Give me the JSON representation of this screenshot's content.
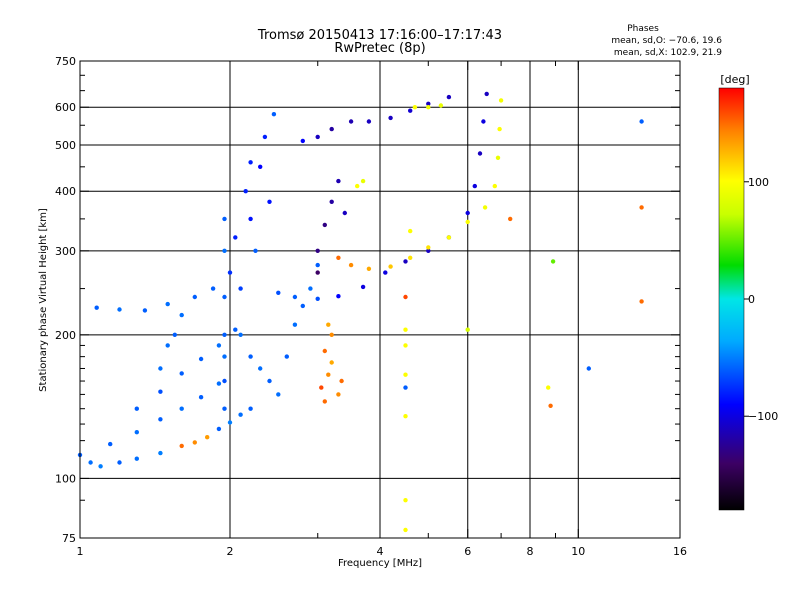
{
  "chart_data": {
    "type": "scatter",
    "title": "Tromsø 20150413 17:16:00–17:17:43",
    "subtitle": "RwPretec (8p)",
    "info": {
      "heading": "Phases",
      "line1": "mean, sd,O: −70.6, 19.6",
      "line2": "mean, sd,X: 102.9, 21.9"
    },
    "xlabel": "Frequency [MHz]",
    "ylabel": "Stationary phase Virtual Height [km]",
    "x_scale": "log",
    "y_scale": "log",
    "xlim": [
      1,
      16
    ],
    "ylim": [
      75,
      750
    ],
    "x_ticks": [
      1,
      2,
      4,
      6,
      8,
      10,
      16
    ],
    "x_tick_labels": [
      "1",
      "2",
      "4",
      "6",
      "8",
      "10",
      "16"
    ],
    "x_minor_ticks": [
      3,
      5,
      7,
      9
    ],
    "y_ticks": [
      75,
      100,
      200,
      300,
      400,
      500,
      600,
      750
    ],
    "y_tick_labels": [
      "75",
      "100",
      "200",
      "300",
      "400",
      "500",
      "600",
      "750"
    ],
    "y_minor_ticks": [
      90,
      120,
      130,
      140,
      150,
      160,
      170,
      180,
      190,
      250,
      350,
      450,
      550,
      650,
      700
    ],
    "x_grid": [
      2,
      4,
      6,
      8,
      10
    ],
    "y_grid": [
      100,
      200,
      300,
      400,
      500,
      600
    ],
    "grid": true,
    "colorbar": {
      "label": "[deg]",
      "min": -180,
      "max": 180,
      "ticks": [
        100,
        0,
        -100
      ],
      "tick_labels": [
        "100",
        "0",
        "−100"
      ]
    },
    "series": [
      {
        "points": [
          [
            1.0,
            112,
            -60
          ],
          [
            1.05,
            108,
            -55
          ],
          [
            1.1,
            106,
            -50
          ],
          [
            1.2,
            108,
            -60
          ],
          [
            1.3,
            110,
            -55
          ],
          [
            1.45,
            113,
            -50
          ],
          [
            1.6,
            117,
            150
          ],
          [
            1.7,
            119,
            140
          ],
          [
            1.8,
            122,
            135
          ],
          [
            1.9,
            127,
            -60
          ],
          [
            2.0,
            131,
            -50
          ],
          [
            2.1,
            136,
            -55
          ],
          [
            2.2,
            140,
            -60
          ],
          [
            1.15,
            118,
            -60
          ],
          [
            1.3,
            125,
            -55
          ],
          [
            1.45,
            133,
            -60
          ],
          [
            1.6,
            140,
            -55
          ],
          [
            1.75,
            148,
            -60
          ],
          [
            1.9,
            158,
            -55
          ],
          [
            1.3,
            140,
            -60
          ],
          [
            1.45,
            152,
            -65
          ],
          [
            1.6,
            166,
            -60
          ],
          [
            1.75,
            178,
            -60
          ],
          [
            1.9,
            190,
            -55
          ],
          [
            2.05,
            205,
            -60
          ],
          [
            1.08,
            228,
            -60
          ],
          [
            1.2,
            226,
            -55
          ],
          [
            1.35,
            225,
            -60
          ],
          [
            1.5,
            232,
            -55
          ],
          [
            1.7,
            240,
            -60
          ],
          [
            1.85,
            250,
            -60
          ],
          [
            1.45,
            170,
            -55
          ],
          [
            1.5,
            190,
            -55
          ],
          [
            1.55,
            200,
            -60
          ],
          [
            1.6,
            220,
            -55
          ],
          [
            1.95,
            140,
            -60
          ],
          [
            1.95,
            160,
            -65
          ],
          [
            1.95,
            180,
            -55
          ],
          [
            1.95,
            200,
            -60
          ],
          [
            1.95,
            240,
            -60
          ],
          [
            1.95,
            300,
            -55
          ],
          [
            1.95,
            350,
            -60
          ],
          [
            2.0,
            270,
            -75
          ],
          [
            2.05,
            320,
            -80
          ],
          [
            2.1,
            250,
            -70
          ],
          [
            2.15,
            400,
            -80
          ],
          [
            2.2,
            350,
            -85
          ],
          [
            2.2,
            460,
            -80
          ],
          [
            2.25,
            300,
            -60
          ],
          [
            2.3,
            450,
            -90
          ],
          [
            2.35,
            520,
            -80
          ],
          [
            2.4,
            380,
            -85
          ],
          [
            2.45,
            580,
            -60
          ],
          [
            2.1,
            200,
            -55
          ],
          [
            2.2,
            180,
            -60
          ],
          [
            2.3,
            170,
            -55
          ],
          [
            2.4,
            160,
            -60
          ],
          [
            2.5,
            150,
            -55
          ],
          [
            2.6,
            180,
            -60
          ],
          [
            2.7,
            210,
            -55
          ],
          [
            2.8,
            230,
            -60
          ],
          [
            2.9,
            250,
            -55
          ],
          [
            3.0,
            280,
            -60
          ],
          [
            2.5,
            245,
            -65
          ],
          [
            2.7,
            240,
            -60
          ],
          [
            3.0,
            238,
            -65
          ],
          [
            3.3,
            241,
            -90
          ],
          [
            3.7,
            252,
            -100
          ],
          [
            4.1,
            270,
            -100
          ],
          [
            4.5,
            285,
            -110
          ],
          [
            5.0,
            300,
            -110
          ],
          [
            5.5,
            320,
            -110
          ],
          [
            6.0,
            360,
            -100
          ],
          [
            6.2,
            410,
            -100
          ],
          [
            6.35,
            480,
            -110
          ],
          [
            6.45,
            560,
            -100
          ],
          [
            6.55,
            640,
            -110
          ],
          [
            3.3,
            290,
            150
          ],
          [
            3.5,
            280,
            140
          ],
          [
            3.8,
            275,
            130
          ],
          [
            4.2,
            278,
            120
          ],
          [
            4.6,
            290,
            110
          ],
          [
            5.0,
            305,
            110
          ],
          [
            5.5,
            320,
            100
          ],
          [
            6.0,
            345,
            100
          ],
          [
            6.5,
            370,
            95
          ],
          [
            6.8,
            410,
            100
          ],
          [
            6.9,
            470,
            90
          ],
          [
            6.95,
            540,
            100
          ],
          [
            7.0,
            620,
            95
          ],
          [
            2.8,
            510,
            -90
          ],
          [
            3.0,
            520,
            -110
          ],
          [
            3.2,
            540,
            -120
          ],
          [
            3.5,
            560,
            -115
          ],
          [
            3.8,
            560,
            -110
          ],
          [
            4.2,
            570,
            -110
          ],
          [
            4.6,
            590,
            -105
          ],
          [
            5.0,
            610,
            -110
          ],
          [
            5.5,
            630,
            -110
          ],
          [
            3.0,
            300,
            -130
          ],
          [
            3.1,
            340,
            -130
          ],
          [
            3.2,
            380,
            -120
          ],
          [
            3.3,
            420,
            -115
          ],
          [
            3.4,
            360,
            -110
          ],
          [
            3.0,
            270,
            -140
          ],
          [
            3.6,
            410,
            100
          ],
          [
            3.7,
            420,
            90
          ],
          [
            4.7,
            600,
            100
          ],
          [
            5.0,
            600,
            95
          ],
          [
            5.3,
            605,
            90
          ],
          [
            3.05,
            155,
            160
          ],
          [
            3.1,
            145,
            150
          ],
          [
            3.15,
            165,
            140
          ],
          [
            3.2,
            175,
            130
          ],
          [
            3.3,
            150,
            140
          ],
          [
            3.35,
            160,
            150
          ],
          [
            3.1,
            185,
            150
          ],
          [
            3.2,
            200,
            140
          ],
          [
            3.15,
            210,
            130
          ],
          [
            4.5,
            240,
            160
          ],
          [
            4.5,
            205,
            100
          ],
          [
            4.5,
            190,
            100
          ],
          [
            4.5,
            165,
            100
          ],
          [
            4.5,
            155,
            -60
          ],
          [
            4.5,
            135,
            100
          ],
          [
            4.5,
            90,
            100
          ],
          [
            4.5,
            78,
            100
          ],
          [
            4.6,
            330,
            100
          ],
          [
            6.0,
            205,
            80
          ],
          [
            7.3,
            350,
            150
          ],
          [
            8.9,
            285,
            50
          ],
          [
            8.7,
            155,
            100
          ],
          [
            8.8,
            142,
            150
          ],
          [
            10.5,
            170,
            -60
          ],
          [
            13.4,
            560,
            -60
          ],
          [
            13.4,
            370,
            150
          ],
          [
            13.4,
            235,
            150
          ]
        ]
      }
    ]
  }
}
